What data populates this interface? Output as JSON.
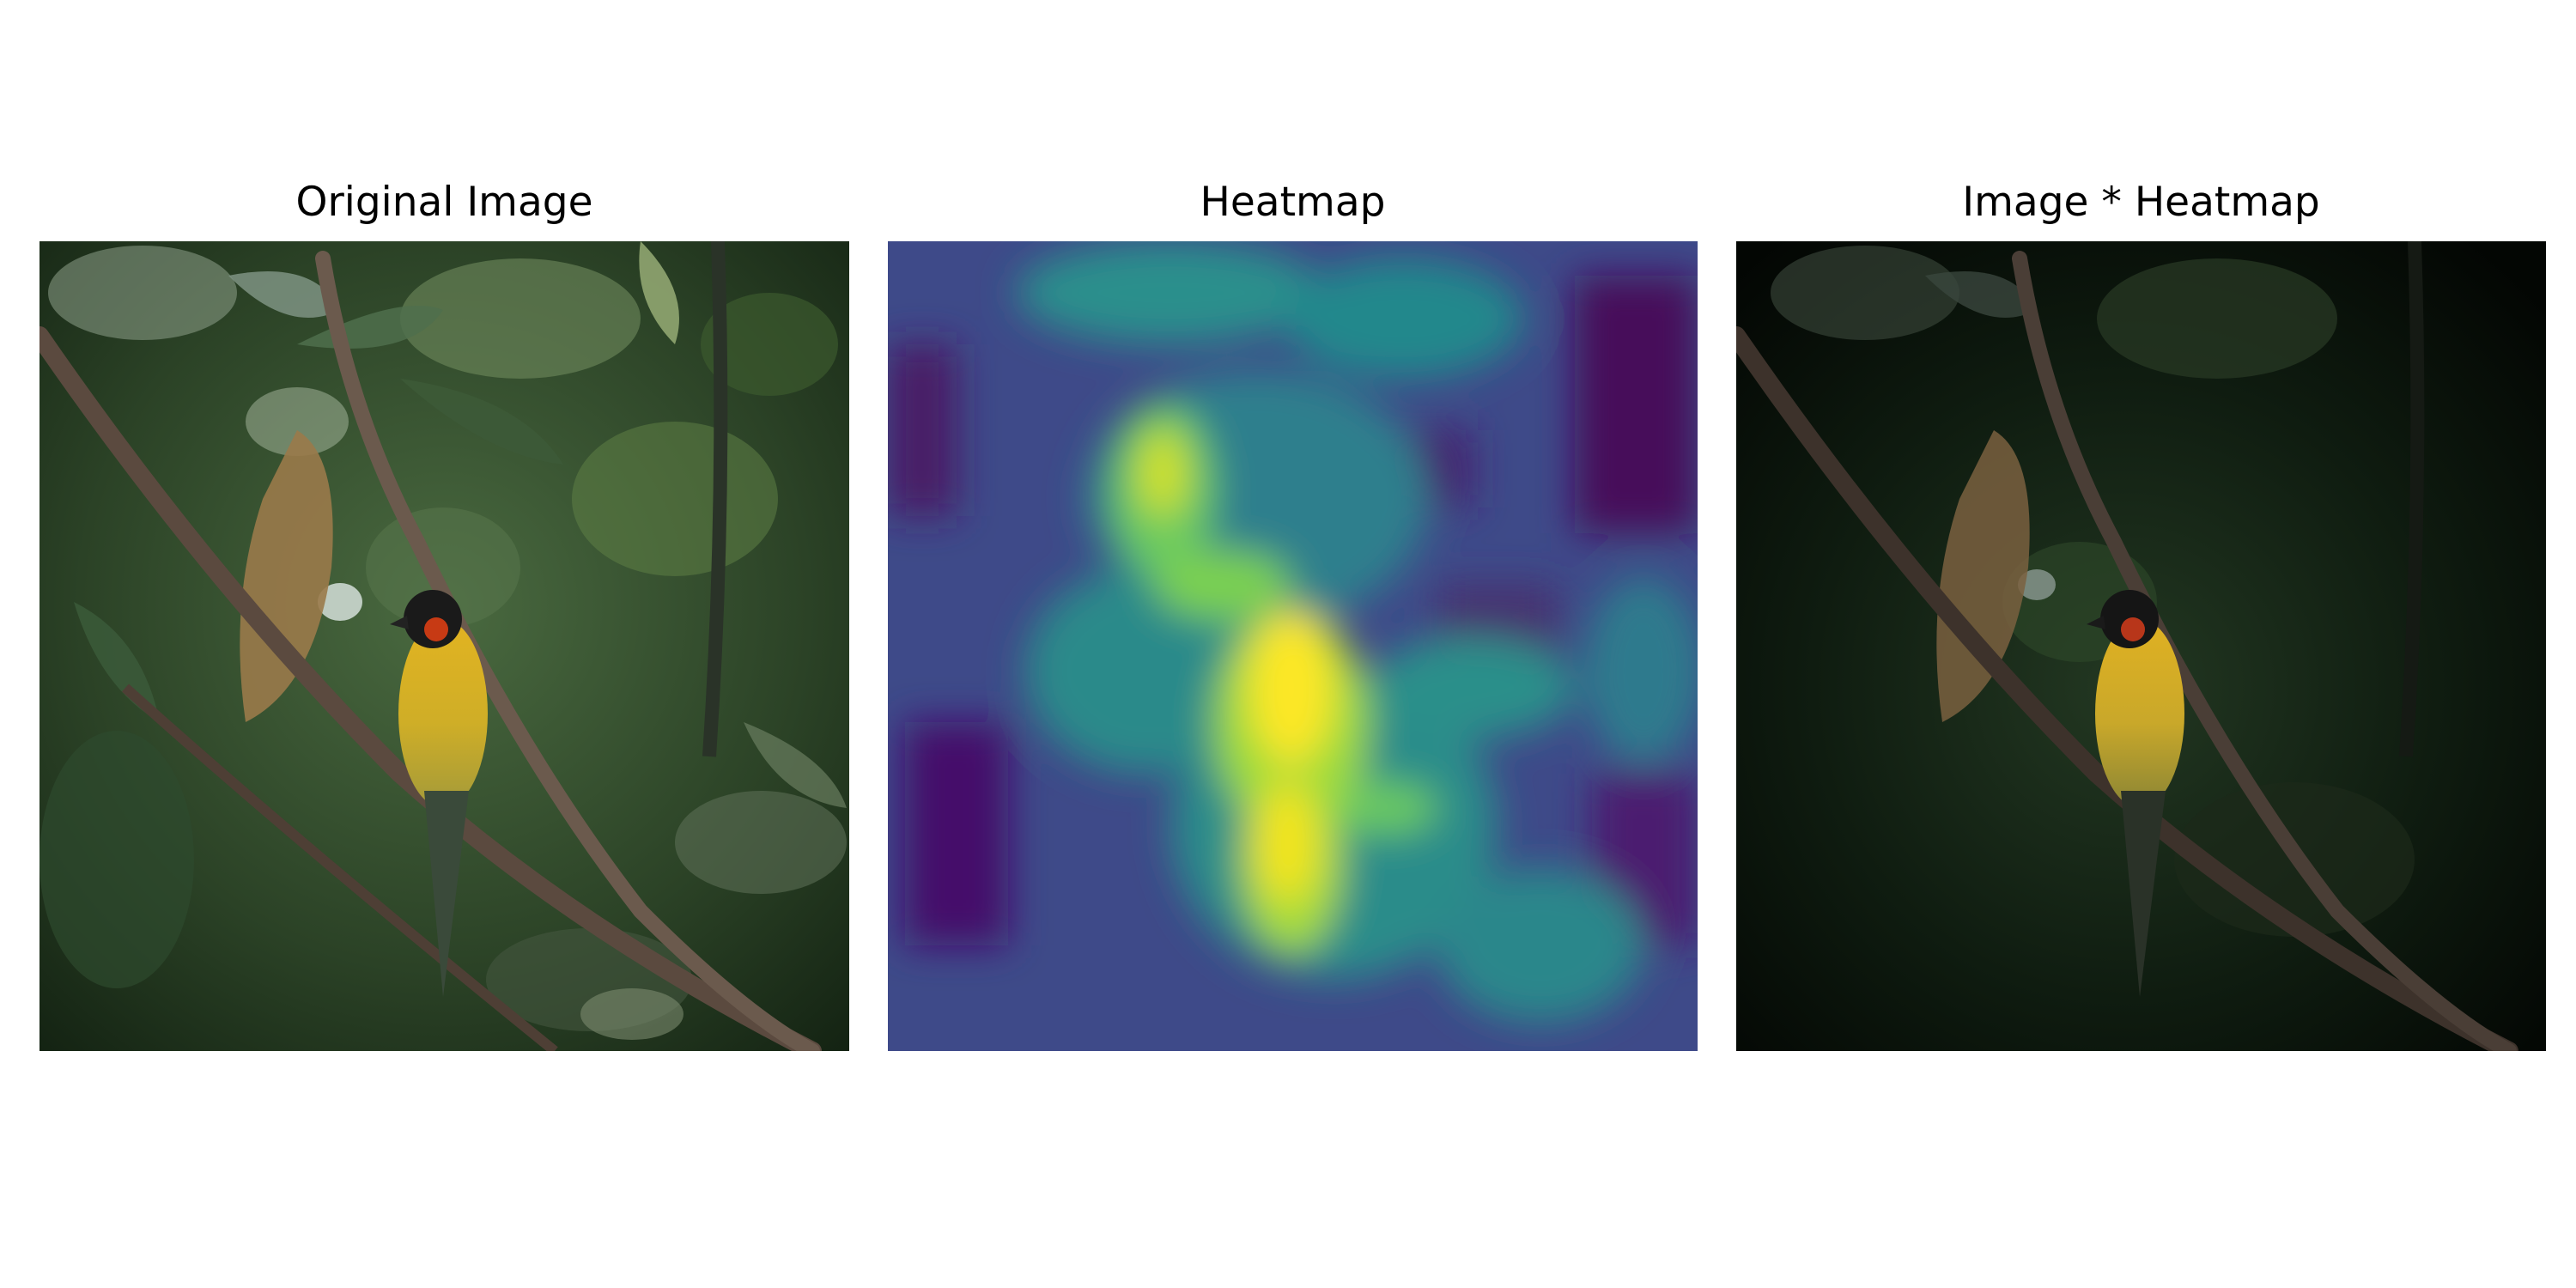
{
  "panels": [
    {
      "title": "Original Image"
    },
    {
      "title": "Heatmap"
    },
    {
      "title": "Image * Heatmap"
    }
  ],
  "colors": {
    "background": "#ffffff",
    "title_text": "#000000",
    "heat_low": "#440154",
    "heat_mid": "#21918c",
    "heat_high": "#fde725",
    "foliage_dark": "#12220f",
    "foliage_mid": "#3f5a35",
    "bird_yellow": "#d9b21e",
    "bird_head": "#1a1a1a",
    "bird_red": "#c73a14",
    "branch": "#5b4a3f"
  }
}
